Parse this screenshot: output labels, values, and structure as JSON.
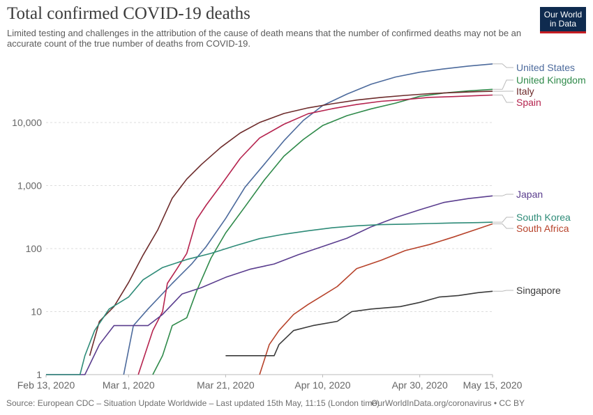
{
  "header": {
    "title": "Total confirmed COVID-19 deaths",
    "subtitle": "Limited testing and challenges in the attribution of the cause of death means that the number of confirmed deaths may not be an accurate count of the true number of deaths from COVID-19.",
    "logo_line1": "Our World",
    "logo_line2": "in Data"
  },
  "footer": {
    "source": "Source: European CDC – Situation Update Worldwide – Last updated 15th May, 11:15 (London time)",
    "link": "OurWorldInData.org/coronavirus • CC BY"
  },
  "chart_data": {
    "type": "line",
    "title": "Total confirmed COVID-19 deaths",
    "y_scale": "log",
    "ylim": [
      1,
      90000
    ],
    "y_ticks": [
      1,
      10,
      100,
      1000,
      10000
    ],
    "y_tick_labels": [
      "1",
      "10",
      "100",
      "1,000",
      "10,000"
    ],
    "x_ticks": [
      "2020-02-13",
      "2020-03-01",
      "2020-03-21",
      "2020-04-10",
      "2020-04-30",
      "2020-05-15"
    ],
    "x_tick_labels": [
      "Feb 13, 2020",
      "Mar 1, 2020",
      "Mar 21, 2020",
      "Apr 10, 2020",
      "Apr 30, 2020",
      "May 15, 2020"
    ],
    "xlim": [
      "2020-02-13",
      "2020-05-15"
    ],
    "grid": "horizontal dashed",
    "legend": "right, inline labels",
    "series": [
      {
        "name": "United States",
        "color": "#4c6a9c",
        "points": [
          [
            "2020-02-29",
            1
          ],
          [
            "2020-03-02",
            6
          ],
          [
            "2020-03-05",
            11
          ],
          [
            "2020-03-10",
            28
          ],
          [
            "2020-03-14",
            57
          ],
          [
            "2020-03-17",
            108
          ],
          [
            "2020-03-21",
            300
          ],
          [
            "2020-03-25",
            942
          ],
          [
            "2020-03-29",
            2191
          ],
          [
            "2020-04-02",
            5137
          ],
          [
            "2020-04-06",
            10783
          ],
          [
            "2020-04-10",
            18586
          ],
          [
            "2020-04-15",
            28326
          ],
          [
            "2020-04-20",
            40661
          ],
          [
            "2020-04-25",
            52782
          ],
          [
            "2020-04-30",
            62996
          ],
          [
            "2020-05-05",
            71022
          ],
          [
            "2020-05-10",
            78794
          ],
          [
            "2020-05-15",
            85197
          ]
        ]
      },
      {
        "name": "United Kingdom",
        "color": "#2f8a4a",
        "points": [
          [
            "2020-03-06",
            1
          ],
          [
            "2020-03-08",
            2
          ],
          [
            "2020-03-10",
            6
          ],
          [
            "2020-03-13",
            8
          ],
          [
            "2020-03-15",
            21
          ],
          [
            "2020-03-18",
            71
          ],
          [
            "2020-03-21",
            177
          ],
          [
            "2020-03-25",
            463
          ],
          [
            "2020-03-29",
            1228
          ],
          [
            "2020-04-02",
            2921
          ],
          [
            "2020-04-06",
            5373
          ],
          [
            "2020-04-10",
            8958
          ],
          [
            "2020-04-15",
            12868
          ],
          [
            "2020-04-20",
            16509
          ],
          [
            "2020-04-25",
            20319
          ],
          [
            "2020-04-30",
            26097
          ],
          [
            "2020-05-05",
            29427
          ],
          [
            "2020-05-10",
            31855
          ],
          [
            "2020-05-15",
            33614
          ]
        ]
      },
      {
        "name": "Italy",
        "color": "#6d2b2b",
        "points": [
          [
            "2020-02-22",
            2
          ],
          [
            "2020-02-24",
            7
          ],
          [
            "2020-02-27",
            12
          ],
          [
            "2020-03-01",
            29
          ],
          [
            "2020-03-04",
            79
          ],
          [
            "2020-03-07",
            197
          ],
          [
            "2020-03-10",
            631
          ],
          [
            "2020-03-13",
            1266
          ],
          [
            "2020-03-16",
            2158
          ],
          [
            "2020-03-20",
            4032
          ],
          [
            "2020-03-24",
            6820
          ],
          [
            "2020-03-28",
            10023
          ],
          [
            "2020-04-02",
            13915
          ],
          [
            "2020-04-07",
            17127
          ],
          [
            "2020-04-12",
            19899
          ],
          [
            "2020-04-17",
            22745
          ],
          [
            "2020-04-22",
            25085
          ],
          [
            "2020-04-27",
            26977
          ],
          [
            "2020-05-02",
            28710
          ],
          [
            "2020-05-07",
            29958
          ],
          [
            "2020-05-12",
            30911
          ],
          [
            "2020-05-15",
            31368
          ]
        ]
      },
      {
        "name": "Spain",
        "color": "#b5234e",
        "points": [
          [
            "2020-03-03",
            1
          ],
          [
            "2020-03-06",
            5
          ],
          [
            "2020-03-08",
            10
          ],
          [
            "2020-03-09",
            28
          ],
          [
            "2020-03-11",
            48
          ],
          [
            "2020-03-13",
            84
          ],
          [
            "2020-03-15",
            288
          ],
          [
            "2020-03-17",
            491
          ],
          [
            "2020-03-20",
            1002
          ],
          [
            "2020-03-24",
            2696
          ],
          [
            "2020-03-28",
            5690
          ],
          [
            "2020-04-02",
            9387
          ],
          [
            "2020-04-07",
            13798
          ],
          [
            "2020-04-12",
            16606
          ],
          [
            "2020-04-17",
            19315
          ],
          [
            "2020-04-22",
            21717
          ],
          [
            "2020-04-27",
            23190
          ],
          [
            "2020-05-02",
            25100
          ],
          [
            "2020-05-07",
            25857
          ],
          [
            "2020-05-12",
            26744
          ],
          [
            "2020-05-15",
            27321
          ]
        ]
      },
      {
        "name": "Japan",
        "color": "#5a3d8e",
        "points": [
          [
            "2020-02-13",
            1
          ],
          [
            "2020-02-21",
            1
          ],
          [
            "2020-02-24",
            3
          ],
          [
            "2020-02-27",
            6
          ],
          [
            "2020-03-01",
            6
          ],
          [
            "2020-03-05",
            6
          ],
          [
            "2020-03-08",
            9
          ],
          [
            "2020-03-12",
            19
          ],
          [
            "2020-03-16",
            24
          ],
          [
            "2020-03-21",
            35
          ],
          [
            "2020-03-26",
            47
          ],
          [
            "2020-03-31",
            57
          ],
          [
            "2020-04-05",
            80
          ],
          [
            "2020-04-10",
            108
          ],
          [
            "2020-04-15",
            146
          ],
          [
            "2020-04-20",
            222
          ],
          [
            "2020-04-25",
            310
          ],
          [
            "2020-04-30",
            413
          ],
          [
            "2020-05-05",
            540
          ],
          [
            "2020-05-10",
            621
          ],
          [
            "2020-05-15",
            687
          ]
        ]
      },
      {
        "name": "South Korea",
        "color": "#2e8b78",
        "points": [
          [
            "2020-02-13",
            1
          ],
          [
            "2020-02-20",
            1
          ],
          [
            "2020-02-21",
            2
          ],
          [
            "2020-02-23",
            5
          ],
          [
            "2020-02-26",
            11
          ],
          [
            "2020-03-01",
            17
          ],
          [
            "2020-03-04",
            32
          ],
          [
            "2020-03-08",
            50
          ],
          [
            "2020-03-13",
            67
          ],
          [
            "2020-03-18",
            84
          ],
          [
            "2020-03-23",
            111
          ],
          [
            "2020-03-28",
            144
          ],
          [
            "2020-04-02",
            169
          ],
          [
            "2020-04-07",
            192
          ],
          [
            "2020-04-12",
            214
          ],
          [
            "2020-04-17",
            230
          ],
          [
            "2020-04-22",
            240
          ],
          [
            "2020-04-27",
            244
          ],
          [
            "2020-05-02",
            250
          ],
          [
            "2020-05-07",
            255
          ],
          [
            "2020-05-12",
            258
          ],
          [
            "2020-05-15",
            262
          ]
        ]
      },
      {
        "name": "South Africa",
        "color": "#b7432b",
        "points": [
          [
            "2020-03-28",
            1
          ],
          [
            "2020-03-30",
            3
          ],
          [
            "2020-04-01",
            5
          ],
          [
            "2020-04-04",
            9
          ],
          [
            "2020-04-07",
            13
          ],
          [
            "2020-04-10",
            18
          ],
          [
            "2020-04-13",
            25
          ],
          [
            "2020-04-17",
            48
          ],
          [
            "2020-04-22",
            65
          ],
          [
            "2020-04-27",
            93
          ],
          [
            "2020-05-02",
            116
          ],
          [
            "2020-05-07",
            153
          ],
          [
            "2020-05-12",
            206
          ],
          [
            "2020-05-15",
            247
          ]
        ]
      },
      {
        "name": "Singapore",
        "color": "#3a3a3a",
        "points": [
          [
            "2020-03-21",
            2
          ],
          [
            "2020-03-31",
            2
          ],
          [
            "2020-04-01",
            3
          ],
          [
            "2020-04-04",
            5
          ],
          [
            "2020-04-08",
            6
          ],
          [
            "2020-04-13",
            7
          ],
          [
            "2020-04-16",
            10
          ],
          [
            "2020-04-20",
            11
          ],
          [
            "2020-04-26",
            12
          ],
          [
            "2020-04-30",
            14
          ],
          [
            "2020-05-04",
            17
          ],
          [
            "2020-05-08",
            18
          ],
          [
            "2020-05-12",
            20
          ],
          [
            "2020-05-15",
            21
          ]
        ]
      }
    ]
  }
}
